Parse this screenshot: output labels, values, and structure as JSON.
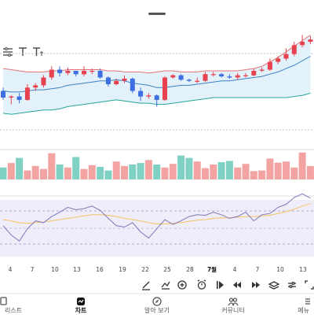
{
  "colors": {
    "up": "#e8414f",
    "down": "#3d6fe0",
    "bb_upper": "#e57373",
    "bb_lower": "#26a69a",
    "bb_mid": "#3b82c4",
    "bb_fill": "#e3f1fb",
    "vol_up": "#f4a3a3",
    "vol_down": "#7fd1c4",
    "osc_bg": "#efedf9",
    "osc_line": "#8078b8",
    "osc_signal": "#f2c462",
    "nav_active": "#111111",
    "nav_inactive": "#555555"
  },
  "x_ticks": [
    "4",
    "7",
    "10",
    "13",
    "16",
    "19",
    "22",
    "25",
    "28",
    "7월",
    "4",
    "7",
    "10",
    "13"
  ],
  "toolbar": {
    "tools": [
      "pencil-icon",
      "indicator-icon",
      "zoom-in-icon",
      "alarm-icon",
      "play-icon",
      "rewind-icon",
      "forward-icon",
      "layers-icon",
      "compare-icon",
      "fullscreen-icon"
    ]
  },
  "nav": {
    "items": [
      {
        "label": "리스트",
        "icon": "list-icon",
        "active": false
      },
      {
        "label": "차트",
        "icon": "chart-icon",
        "active": true
      },
      {
        "label": "알아 보기",
        "icon": "compass-icon",
        "active": false
      },
      {
        "label": "커뮤니티",
        "icon": "community-icon",
        "active": false
      },
      {
        "label": "메뉴",
        "icon": "menu-icon",
        "active": false
      }
    ]
  },
  "chart_data": [
    {
      "type": "candlestick",
      "y_range": [
        0,
        100
      ],
      "series": {
        "open": [
          44,
          38,
          39,
          36,
          47,
          49,
          56,
          63,
          60,
          62,
          59,
          62,
          62,
          56,
          50,
          53,
          55,
          44,
          39,
          40,
          36,
          56,
          58,
          54,
          53,
          53,
          59,
          59,
          57,
          56,
          58,
          58,
          62,
          63,
          70,
          73,
          77,
          85,
          88
        ],
        "close": [
          38,
          39,
          36,
          47,
          49,
          56,
          63,
          60,
          62,
          59,
          62,
          62,
          56,
          50,
          53,
          55,
          44,
          39,
          40,
          36,
          56,
          58,
          54,
          53,
          53,
          59,
          59,
          57,
          56,
          58,
          58,
          62,
          63,
          70,
          73,
          77,
          85,
          88,
          90
        ],
        "high": [
          47,
          40,
          42,
          50,
          51,
          58,
          66,
          66,
          65,
          62,
          66,
          64,
          64,
          57,
          55,
          58,
          56,
          47,
          42,
          41,
          57,
          59,
          59,
          55,
          56,
          61,
          61,
          60,
          59,
          60,
          60,
          64,
          65,
          73,
          75,
          82,
          88,
          94,
          93
        ],
        "low": [
          36,
          32,
          33,
          35,
          44,
          47,
          54,
          57,
          58,
          57,
          57,
          59,
          55,
          48,
          49,
          51,
          42,
          35,
          37,
          30,
          35,
          55,
          53,
          52,
          51,
          52,
          57,
          56,
          55,
          54,
          56,
          57,
          61,
          62,
          68,
          71,
          75,
          83,
          86
        ],
        "bb_upper": [
          64,
          63,
          62,
          61,
          61,
          61,
          62,
          62,
          63,
          63,
          63,
          63,
          63,
          62,
          62,
          61,
          61,
          61,
          60,
          61,
          62,
          62,
          61,
          61,
          61,
          62,
          62,
          62,
          62,
          62,
          63,
          64,
          66,
          70,
          74,
          79,
          84,
          89,
          94
        ],
        "bb_mid": [
          44,
          43,
          43,
          44,
          45,
          45,
          46,
          47,
          49,
          50,
          51,
          52,
          53,
          53,
          54,
          53,
          51,
          50,
          49,
          47,
          47,
          48,
          49,
          49,
          50,
          51,
          52,
          53,
          53,
          54,
          55,
          56,
          57,
          59,
          61,
          64,
          67,
          71,
          75
        ],
        "bb_lower": [
          24,
          23,
          24,
          25,
          26,
          27,
          27,
          28,
          30,
          31,
          32,
          33,
          34,
          35,
          36,
          35,
          34,
          33,
          33,
          32,
          32,
          33,
          34,
          35,
          36,
          37,
          38,
          38,
          38,
          38,
          38,
          38,
          38,
          38,
          38,
          38,
          39,
          40,
          42
        ]
      }
    },
    {
      "type": "bar",
      "name": "volume",
      "y_range": [
        0,
        100
      ],
      "values": [
        40,
        55,
        72,
        30,
        45,
        35,
        88,
        50,
        40,
        75,
        35,
        48,
        42,
        30,
        60,
        45,
        50,
        55,
        65,
        50,
        40,
        52,
        80,
        72,
        60,
        38,
        50,
        58,
        62,
        40,
        52,
        28,
        30,
        70,
        56,
        60,
        40,
        90,
        45
      ]
    },
    {
      "type": "line",
      "name": "oscillator",
      "y_range": [
        0,
        100
      ],
      "series": [
        {
          "values": [
            40,
            25,
            15,
            35,
            48,
            45,
            55,
            62,
            70,
            66,
            68,
            72,
            65,
            52,
            40,
            38,
            45,
            30,
            20,
            35,
            50,
            42,
            48,
            55,
            58,
            57,
            62,
            58,
            52,
            55,
            62,
            48,
            58,
            60,
            70,
            75,
            86,
            92,
            85
          ]
        },
        {
          "values": [
            50,
            48,
            45,
            44,
            45,
            46,
            48,
            50,
            52,
            54,
            56,
            58,
            58,
            57,
            55,
            52,
            50,
            48,
            45,
            43,
            43,
            44,
            45,
            47,
            49,
            50,
            52,
            53,
            53,
            54,
            55,
            55,
            56,
            57,
            60,
            63,
            67,
            72,
            76
          ]
        }
      ]
    }
  ]
}
